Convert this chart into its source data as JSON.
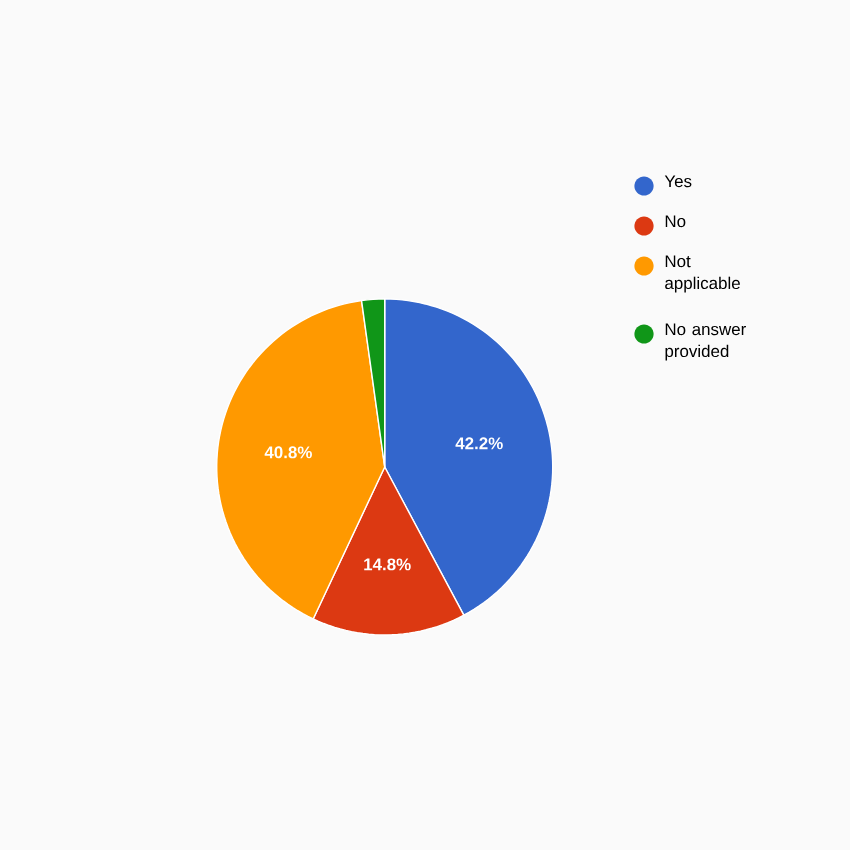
{
  "chart_data": {
    "type": "pie",
    "categories": [
      "Yes",
      "No",
      "Not applicable",
      "No answer provided"
    ],
    "values": [
      42.2,
      14.8,
      40.8,
      2.2
    ],
    "colors": [
      "#3366cc",
      "#dc3912",
      "#ff9900",
      "#109618"
    ],
    "value_labels": [
      "42.2%",
      "14.8%",
      "40.8%",
      null
    ],
    "legend": "right"
  }
}
